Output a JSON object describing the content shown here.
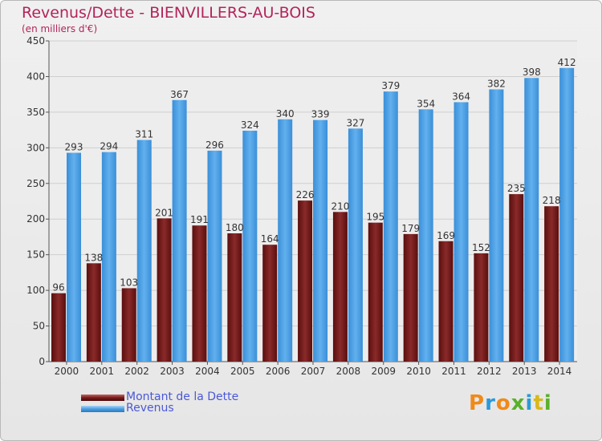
{
  "title": "Revenus/Dette - BIENVILLERS-AU-BOIS",
  "subtitle": "(en milliers d'€)",
  "colors": {
    "dette": "#7a1a1a",
    "revenus": "#4a9fe0",
    "title": "#b2245a",
    "legend_text": "#4a58d8"
  },
  "legend": {
    "items": [
      {
        "label": "Montant de la Dette"
      },
      {
        "label": "Revenus"
      }
    ]
  },
  "logo": {
    "letters": [
      "P",
      "r",
      "o",
      "x",
      "i",
      "t",
      "i"
    ]
  },
  "chart_data": {
    "type": "bar",
    "title": "Revenus/Dette - BIENVILLERS-AU-BOIS",
    "subtitle": "(en milliers d'€)",
    "categories": [
      "2000",
      "2001",
      "2002",
      "2003",
      "2004",
      "2005",
      "2006",
      "2007",
      "2008",
      "2009",
      "2010",
      "2011",
      "2012",
      "2013",
      "2014"
    ],
    "series": [
      {
        "name": "Montant de la Dette",
        "values": [
          96,
          138,
          103,
          201,
          191,
          180,
          164,
          226,
          210,
          195,
          179,
          169,
          152,
          235,
          218
        ]
      },
      {
        "name": "Revenus",
        "values": [
          293,
          294,
          311,
          367,
          296,
          324,
          340,
          339,
          327,
          379,
          354,
          364,
          382,
          398,
          412
        ]
      }
    ],
    "ylim": [
      0,
      450
    ],
    "yticks": [
      0,
      50,
      100,
      150,
      200,
      250,
      300,
      350,
      400,
      450
    ],
    "grid": true,
    "legend_position": "bottom-left"
  }
}
